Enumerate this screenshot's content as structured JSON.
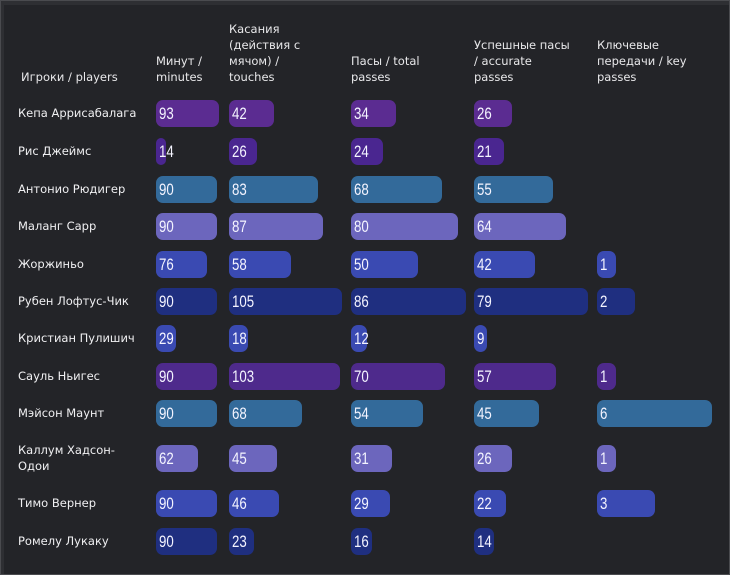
{
  "chart_data": {
    "type": "table",
    "title": "",
    "columns": [
      {
        "key": "minutes",
        "header": [
          "Минут /",
          "minutes"
        ],
        "max": 93
      },
      {
        "key": "touches",
        "header": [
          "Касания",
          "(действия с",
          "мячом) /",
          "touches"
        ],
        "max": 105
      },
      {
        "key": "passes",
        "header": [
          "Пасы / total",
          "passes"
        ],
        "max": 86
      },
      {
        "key": "accurate",
        "header": [
          "Успешные пасы",
          "/ accurate",
          "passes"
        ],
        "max": 79
      },
      {
        "key": "key_passes",
        "header": [
          "Ключевые",
          "передачи / key",
          "passes"
        ],
        "max": 6
      }
    ],
    "player_header": "Игроки / players",
    "rows": [
      {
        "player": [
          "Кепа Аррисабалага"
        ],
        "color": "#5b2c91",
        "minutes": 93,
        "touches": 42,
        "passes": 34,
        "accurate": 26,
        "key_passes": null
      },
      {
        "player": [
          "Рис Джеймс"
        ],
        "color": "#4a2690",
        "minutes": 14,
        "touches": 26,
        "passes": 24,
        "accurate": 21,
        "key_passes": null
      },
      {
        "player": [
          "Антонио Рюдигер"
        ],
        "color": "#336a9a",
        "minutes": 90,
        "touches": 83,
        "passes": 68,
        "accurate": 55,
        "key_passes": null
      },
      {
        "player": [
          "Маланг Сарр"
        ],
        "color": "#6c66bd",
        "minutes": 90,
        "touches": 87,
        "passes": 80,
        "accurate": 64,
        "key_passes": null
      },
      {
        "player": [
          "Жоржиньо"
        ],
        "color": "#3a4ab2",
        "minutes": 76,
        "touches": 58,
        "passes": 50,
        "accurate": 42,
        "key_passes": 1
      },
      {
        "player": [
          "Рубен Лофтус-Чик"
        ],
        "color": "#1f2f80",
        "minutes": 90,
        "touches": 105,
        "passes": 86,
        "accurate": 79,
        "key_passes": 2
      },
      {
        "player": [
          "Кристиан Пулишич"
        ],
        "color": "#3a4ab2",
        "minutes": 29,
        "touches": 18,
        "passes": 12,
        "accurate": 9,
        "key_passes": null
      },
      {
        "player": [
          "Сауль Ньигес"
        ],
        "color": "#4e2a8c",
        "minutes": 90,
        "touches": 103,
        "passes": 70,
        "accurate": 57,
        "key_passes": 1
      },
      {
        "player": [
          "Мэйсон Маунт"
        ],
        "color": "#336a9a",
        "minutes": 90,
        "touches": 68,
        "passes": 54,
        "accurate": 45,
        "key_passes": 6
      },
      {
        "player": [
          "Каллум Хадсон-",
          "Одои"
        ],
        "color": "#6c66bd",
        "minutes": 62,
        "touches": 45,
        "passes": 31,
        "accurate": 26,
        "key_passes": 1
      },
      {
        "player": [
          "Тимо Вернер"
        ],
        "color": "#3a4ab2",
        "minutes": 90,
        "touches": 46,
        "passes": 29,
        "accurate": 22,
        "key_passes": 3
      },
      {
        "player": [
          "Ромелу Лукаку"
        ],
        "color": "#1f2f80",
        "minutes": 90,
        "touches": 23,
        "passes": 16,
        "accurate": 14,
        "key_passes": null
      }
    ]
  }
}
